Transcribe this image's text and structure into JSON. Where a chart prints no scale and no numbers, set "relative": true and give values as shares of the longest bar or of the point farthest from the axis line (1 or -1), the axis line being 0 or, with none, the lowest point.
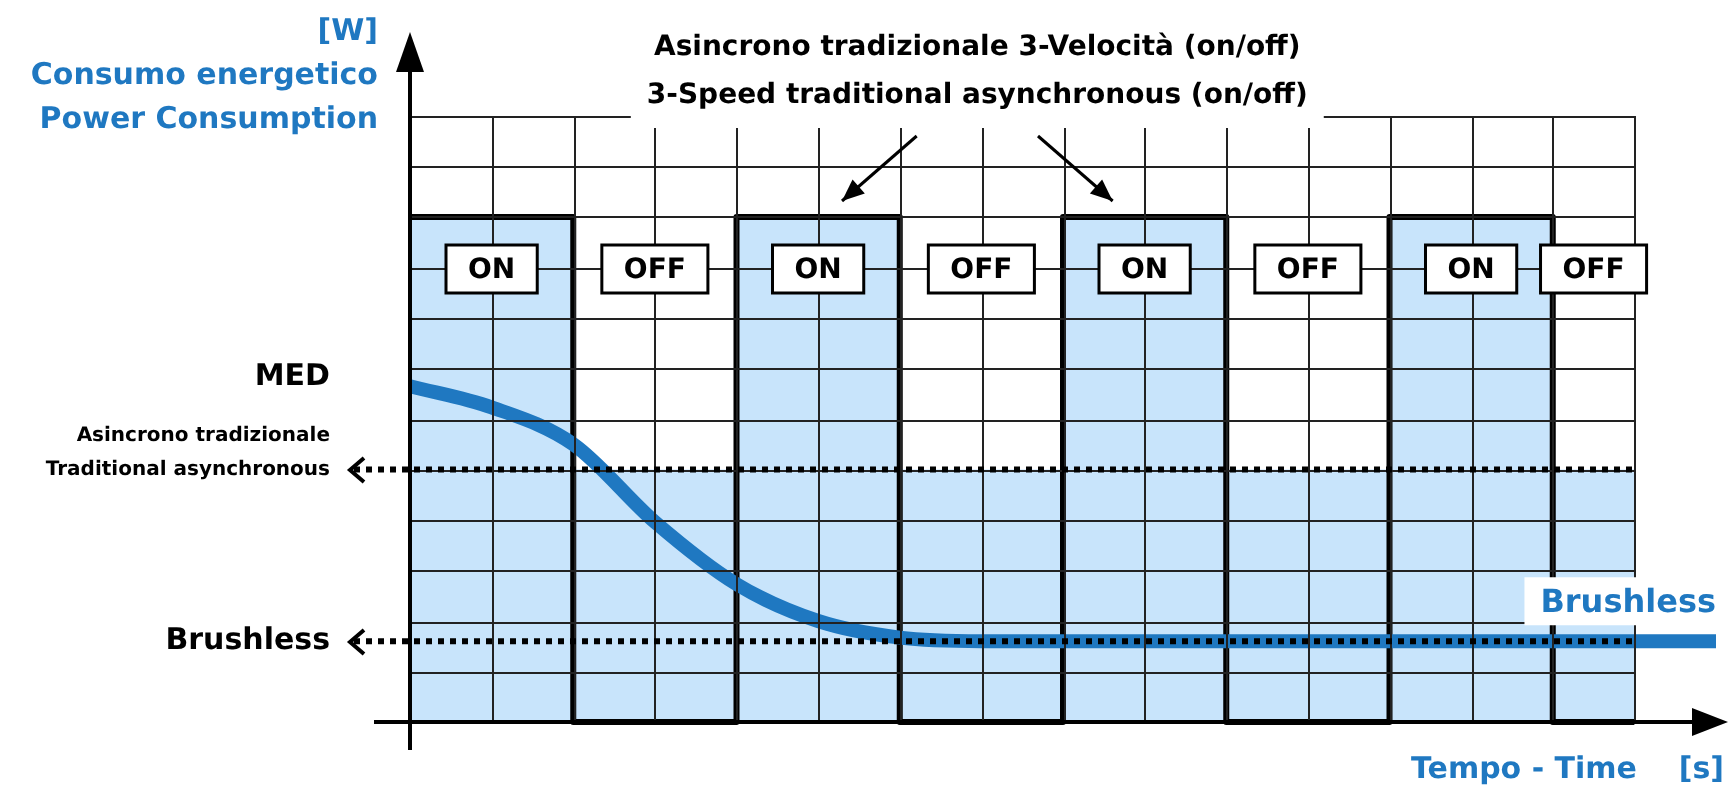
{
  "chart_data": {
    "type": "line",
    "ylabel": "[W]\nConsumo energetico\nPower Consumption",
    "xlabel": "Tempo - Time    [s]",
    "relative": true,
    "categories": [
      null,
      null,
      null,
      null,
      null,
      null,
      null,
      null,
      null,
      null,
      null,
      null,
      null,
      null,
      null,
      null,
      null
    ],
    "grid": true,
    "legend": false,
    "series": [
      {
        "type": "step",
        "color": "#000000",
        "values": [
          1,
          1,
          0,
          0,
          1,
          1,
          0,
          0,
          1,
          1,
          0,
          0,
          1,
          1,
          0,
          0,
          null
        ]
      },
      {
        "name": "Brushless",
        "color": "#1f78c1",
        "values": [
          0.665,
          0.623,
          0.55,
          0.396,
          0.273,
          0.2,
          0.167,
          0.16,
          0.16,
          0.16,
          0.16,
          0.16,
          0.16,
          0.16,
          0.16,
          0.16,
          0.16
        ]
      }
    ],
    "ref_lines": [
      {
        "axis": "y",
        "value": 0.5,
        "label": "MED\nAsincrono tradizionale\nTraditional asynchronous",
        "color": "#000000",
        "line_style": "dotted"
      },
      {
        "axis": "y",
        "value": 0.16,
        "label": "Brushless",
        "color": "#000000",
        "line_style": "dotted"
      }
    ],
    "bands": [
      {
        "axis": "y",
        "from": 0,
        "to": 0.5,
        "color": "#c8e4fb"
      }
    ],
    "annotations": [
      "Asincrono tradizionale 3-Velocità (on/off)",
      "3-Speed traditional asynchronous (on/off)",
      "ON",
      "OFF",
      "ON",
      "OFF",
      "ON",
      "OFF",
      "ON",
      "OFF"
    ]
  }
}
